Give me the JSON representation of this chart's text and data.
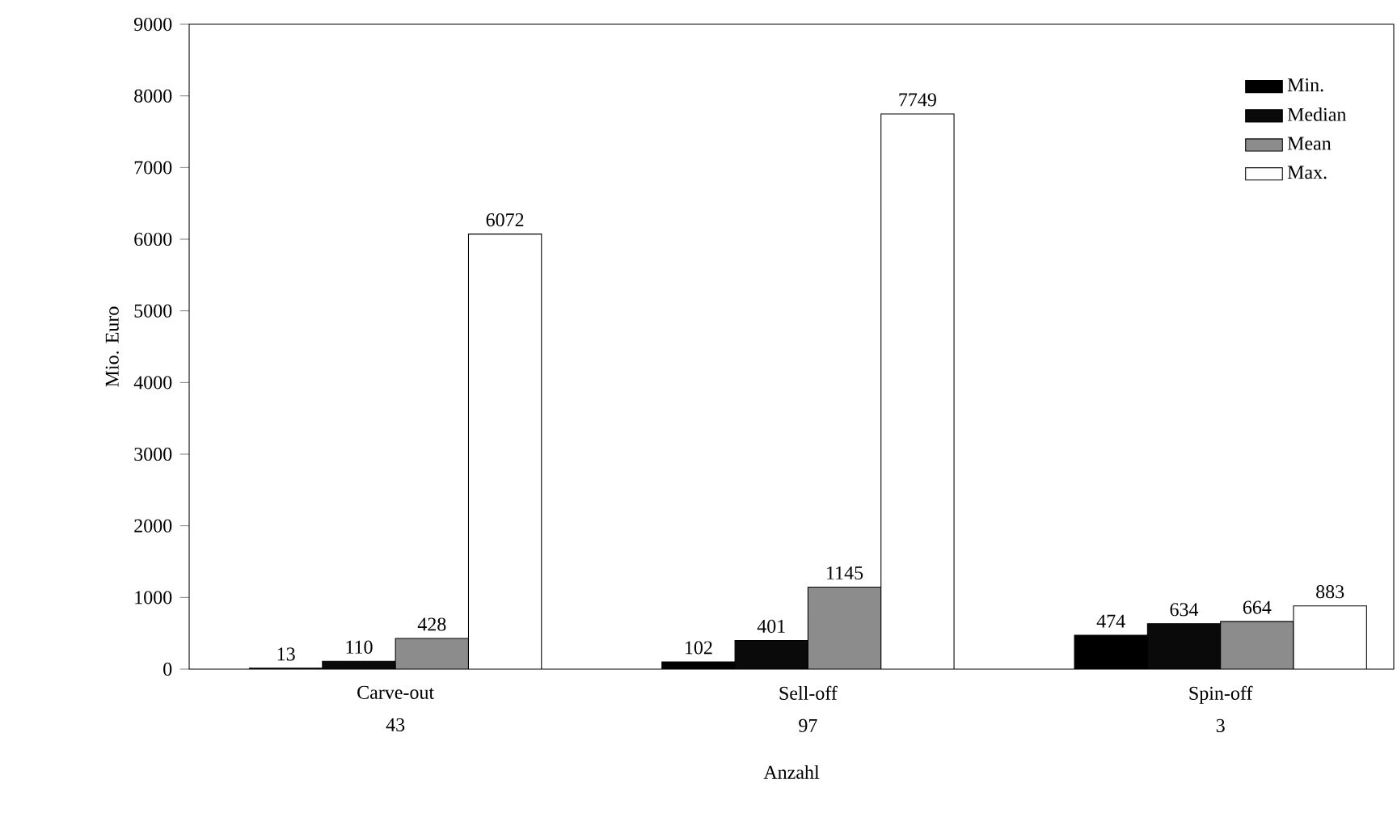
{
  "chart_data": {
    "type": "bar",
    "xlabel": "Anzahl",
    "ylabel": "Mio. Euro",
    "categories": [
      "Carve-out",
      "Sell-off",
      "Spin-off"
    ],
    "annotations": [
      "43",
      "97",
      "3"
    ],
    "series": [
      {
        "name": "Min.",
        "color": "#000000",
        "values": [
          13,
          102,
          474
        ]
      },
      {
        "name": "Median",
        "color": "#0a0a0a",
        "values": [
          110,
          401,
          634
        ]
      },
      {
        "name": "Mean",
        "color": "#8c8c8c",
        "values": [
          428,
          1145,
          664
        ]
      },
      {
        "name": "Max.",
        "color": "#ffffff",
        "values": [
          6072,
          7749,
          883
        ]
      }
    ],
    "ylim": [
      0,
      9000
    ],
    "yticks": [
      0,
      1000,
      2000,
      3000,
      4000,
      5000,
      6000,
      7000,
      8000,
      9000
    ],
    "data_labels": true,
    "legend": "top right"
  }
}
